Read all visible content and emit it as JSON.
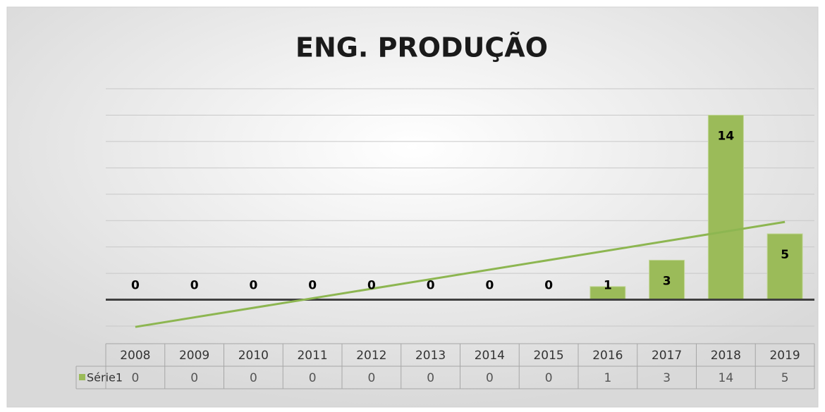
{
  "chart_data": {
    "type": "bar",
    "title": "ENG. PRODUÇÃO",
    "categories": [
      "2008",
      "2009",
      "2010",
      "2011",
      "2012",
      "2013",
      "2014",
      "2015",
      "2016",
      "2017",
      "2018",
      "2019"
    ],
    "series": [
      {
        "name": "Série1",
        "color": "#9bbb59",
        "values": [
          0,
          0,
          0,
          0,
          0,
          0,
          0,
          0,
          1,
          3,
          14,
          5
        ]
      }
    ],
    "ylim": [
      -2,
      16
    ],
    "yticks": [
      -2,
      0,
      2,
      4,
      6,
      8,
      10,
      12,
      14,
      16
    ],
    "grid": true,
    "trendline": "linear",
    "data_table": true
  }
}
